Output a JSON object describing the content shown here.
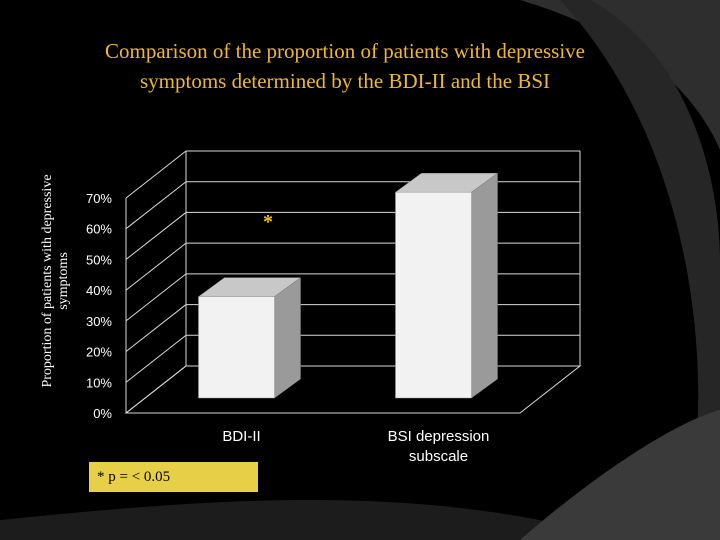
{
  "chart_data": {
    "type": "bar",
    "title": "Comparison of the proportion of patients with depressive symptoms determined by the BDI-II and the BSI",
    "ylabel": "Proportion of patients with depressive symptoms",
    "xlabel": "",
    "categories": [
      "BDI-II",
      "BSI depression subscale"
    ],
    "category_lines": [
      [
        "BDI-II"
      ],
      [
        "BSI depression",
        "subscale"
      ]
    ],
    "values": [
      33,
      67
    ],
    "ylim": [
      0,
      70
    ],
    "yticks": [
      0,
      10,
      20,
      30,
      40,
      50,
      60,
      70
    ],
    "ytick_labels": [
      "0%",
      "10%",
      "20%",
      "30%",
      "40%",
      "50%",
      "60%",
      "70%"
    ],
    "grid": true,
    "style": "3d-column",
    "annotation": "*",
    "colors": {
      "bar_front": "#f2f2f2",
      "bar_side": "#9a9a9a",
      "bar_top": "#c8c8c8",
      "grid": "#d9d9d9",
      "background": "#000000",
      "title": "#f0b63a",
      "annotation": "#f0c020"
    }
  },
  "footnote": "* p = < 0.05"
}
